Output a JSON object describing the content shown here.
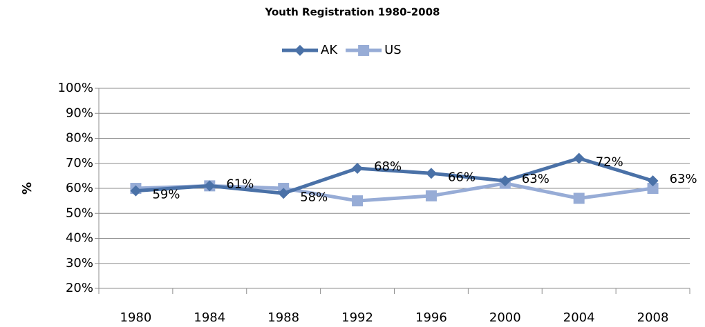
{
  "chart_data": {
    "type": "line",
    "title": "Youth Registration 1980-2008",
    "y_label": "%",
    "categories": [
      "1980",
      "1984",
      "1988",
      "1992",
      "1996",
      "2000",
      "2004",
      "2008"
    ],
    "series": [
      {
        "name": "AK",
        "color": "#4a71a7",
        "marker": "diamond",
        "values": [
          59,
          61,
          58,
          68,
          66,
          63,
          72,
          63
        ],
        "value_labels": [
          "59%",
          "61%",
          "58%",
          "68%",
          "66%",
          "63%",
          "72%",
          "63%"
        ]
      },
      {
        "name": "US",
        "color": "#97acd6",
        "marker": "square",
        "values": [
          60,
          61,
          60,
          55,
          57,
          62,
          56,
          60
        ]
      }
    ],
    "ylim": [
      20,
      100
    ],
    "yticks": [
      {
        "value": 20,
        "label": "20%"
      },
      {
        "value": 30,
        "label": "30%"
      },
      {
        "value": 40,
        "label": "40%"
      },
      {
        "value": 50,
        "label": "50%"
      },
      {
        "value": 60,
        "label": "60%"
      },
      {
        "value": 70,
        "label": "70%"
      },
      {
        "value": 80,
        "label": "80%"
      },
      {
        "value": 90,
        "label": "90%"
      },
      {
        "value": 100,
        "label": "100%"
      }
    ],
    "grid": true,
    "legend": "top"
  }
}
